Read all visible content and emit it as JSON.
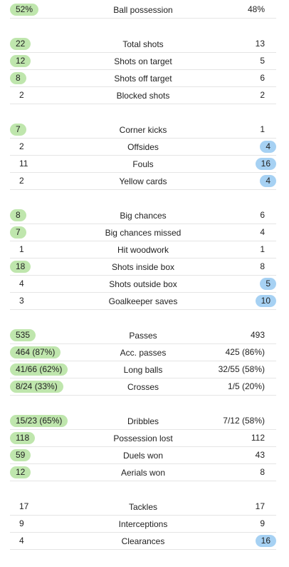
{
  "colors": {
    "home_highlight": "#bfe6ad",
    "away_highlight": "#a6d1f3",
    "divider": "#e5e5e5"
  },
  "groups": [
    {
      "rows": [
        {
          "label": "Ball possession",
          "home": "52%",
          "away": "48%",
          "hl": "home"
        }
      ]
    },
    {
      "rows": [
        {
          "label": "Total shots",
          "home": "22",
          "away": "13",
          "hl": "home"
        },
        {
          "label": "Shots on target",
          "home": "12",
          "away": "5",
          "hl": "home"
        },
        {
          "label": "Shots off target",
          "home": "8",
          "away": "6",
          "hl": "home"
        },
        {
          "label": "Blocked shots",
          "home": "2",
          "away": "2",
          "hl": "none"
        }
      ]
    },
    {
      "rows": [
        {
          "label": "Corner kicks",
          "home": "7",
          "away": "1",
          "hl": "home"
        },
        {
          "label": "Offsides",
          "home": "2",
          "away": "4",
          "hl": "away"
        },
        {
          "label": "Fouls",
          "home": "11",
          "away": "16",
          "hl": "away"
        },
        {
          "label": "Yellow cards",
          "home": "2",
          "away": "4",
          "hl": "away"
        }
      ]
    },
    {
      "rows": [
        {
          "label": "Big chances",
          "home": "8",
          "away": "6",
          "hl": "home"
        },
        {
          "label": "Big chances missed",
          "home": "7",
          "away": "4",
          "hl": "home"
        },
        {
          "label": "Hit woodwork",
          "home": "1",
          "away": "1",
          "hl": "none"
        },
        {
          "label": "Shots inside box",
          "home": "18",
          "away": "8",
          "hl": "home"
        },
        {
          "label": "Shots outside box",
          "home": "4",
          "away": "5",
          "hl": "away"
        },
        {
          "label": "Goalkeeper saves",
          "home": "3",
          "away": "10",
          "hl": "away"
        }
      ]
    },
    {
      "rows": [
        {
          "label": "Passes",
          "home": "535",
          "away": "493",
          "hl": "home"
        },
        {
          "label": "Acc. passes",
          "home": "464 (87%)",
          "away": "425 (86%)",
          "hl": "home"
        },
        {
          "label": "Long balls",
          "home": "41/66 (62%)",
          "away": "32/55 (58%)",
          "hl": "home"
        },
        {
          "label": "Crosses",
          "home": "8/24 (33%)",
          "away": "1/5 (20%)",
          "hl": "home"
        }
      ]
    },
    {
      "rows": [
        {
          "label": "Dribbles",
          "home": "15/23 (65%)",
          "away": "7/12 (58%)",
          "hl": "home"
        },
        {
          "label": "Possession lost",
          "home": "118",
          "away": "112",
          "hl": "home"
        },
        {
          "label": "Duels won",
          "home": "59",
          "away": "43",
          "hl": "home"
        },
        {
          "label": "Aerials won",
          "home": "12",
          "away": "8",
          "hl": "home"
        }
      ]
    },
    {
      "rows": [
        {
          "label": "Tackles",
          "home": "17",
          "away": "17",
          "hl": "none"
        },
        {
          "label": "Interceptions",
          "home": "9",
          "away": "9",
          "hl": "none"
        },
        {
          "label": "Clearances",
          "home": "4",
          "away": "16",
          "hl": "away"
        }
      ]
    }
  ]
}
